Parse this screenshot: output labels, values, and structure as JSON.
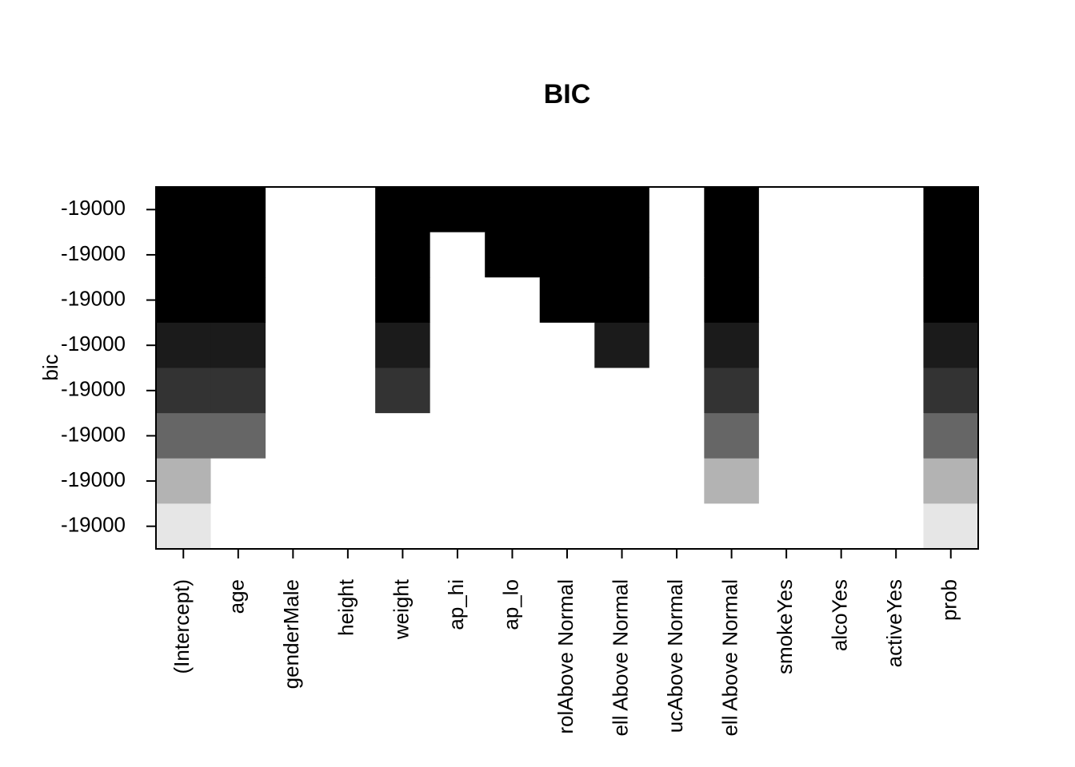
{
  "chart_data": {
    "type": "heatmap",
    "title": "BIC",
    "ylabel": "bic",
    "row_labels": [
      "-19000",
      "-19000",
      "-19000",
      "-19000",
      "-19000",
      "-19000",
      "-19000",
      "-19000"
    ],
    "row_colors": [
      "#000000",
      "#000000",
      "#000000",
      "#1b1b1b",
      "#333333",
      "#666666",
      "#b3b3b3",
      "#e6e6e6"
    ],
    "empty_color": "#ffffff",
    "categories": [
      "(Intercept)",
      "age",
      "genderMale",
      "height",
      "weight",
      "ap_hi",
      "ap_lo",
      "rolAbove Normal",
      "ell Above Normal",
      "ucAbove Normal",
      "ell Above Normal",
      "smokeYes",
      "alcoYes",
      "activeYes",
      "prob"
    ],
    "matrix": [
      [
        1,
        1,
        0,
        0,
        1,
        1,
        1,
        1,
        1,
        0,
        1,
        0,
        0,
        0,
        1
      ],
      [
        1,
        1,
        0,
        0,
        1,
        0,
        1,
        1,
        1,
        0,
        1,
        0,
        0,
        0,
        1
      ],
      [
        1,
        1,
        0,
        0,
        1,
        0,
        0,
        1,
        1,
        0,
        1,
        0,
        0,
        0,
        1
      ],
      [
        1,
        1,
        0,
        0,
        1,
        0,
        0,
        0,
        1,
        0,
        1,
        0,
        0,
        0,
        1
      ],
      [
        1,
        1,
        0,
        0,
        1,
        0,
        0,
        0,
        0,
        0,
        1,
        0,
        0,
        0,
        1
      ],
      [
        1,
        1,
        0,
        0,
        0,
        0,
        0,
        0,
        0,
        0,
        1,
        0,
        0,
        0,
        1
      ],
      [
        1,
        0,
        0,
        0,
        0,
        0,
        0,
        0,
        0,
        0,
        1,
        0,
        0,
        0,
        1
      ],
      [
        1,
        0,
        0,
        0,
        0,
        0,
        0,
        0,
        0,
        0,
        0,
        0,
        0,
        0,
        1
      ]
    ]
  }
}
